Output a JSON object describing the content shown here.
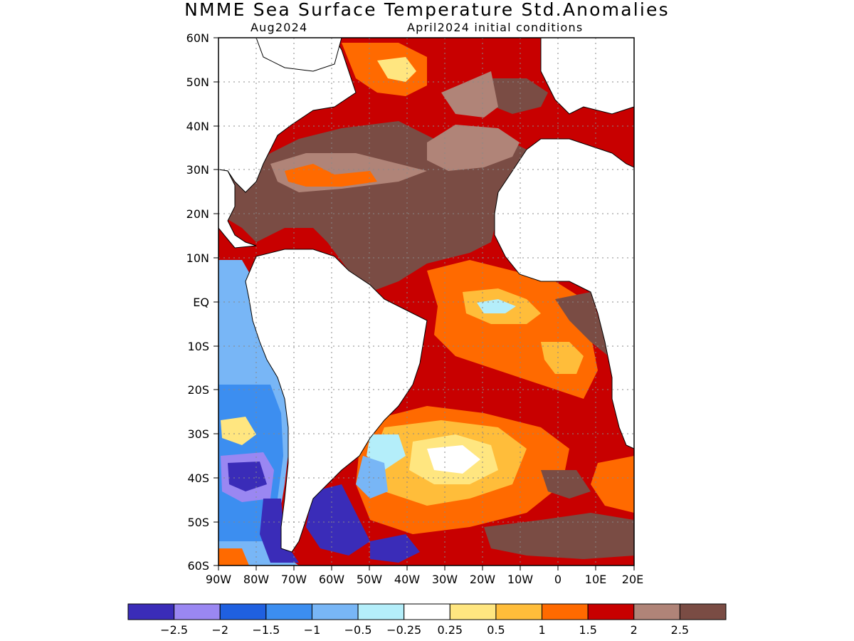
{
  "title": "NMME Sea Surface Temperature Std.Anomalies",
  "subtitle_left": "Aug2024",
  "subtitle_right": "April2024 initial conditions",
  "lat_labels": [
    "60N",
    "50N",
    "40N",
    "30N",
    "20N",
    "10N",
    "EQ",
    "10S",
    "20S",
    "30S",
    "40S",
    "50S",
    "60S"
  ],
  "lon_labels": [
    "90W",
    "80W",
    "70W",
    "60W",
    "50W",
    "40W",
    "30W",
    "20W",
    "10W",
    "0",
    "10E",
    "20E"
  ],
  "colorbar": {
    "colors": [
      "#3a2cb8",
      "#9a87f2",
      "#1f60e0",
      "#3c8ef0",
      "#78b6f6",
      "#b4eefa",
      "#ffffff",
      "#ffe680",
      "#ffbd3a",
      "#ff6a00",
      "#c80000",
      "#b08478",
      "#7a4c44"
    ],
    "labels": [
      "-2.5",
      "-2",
      "-1.5",
      "-1",
      "-0.5",
      "-0.25",
      "0.25",
      "0.5",
      "1",
      "1.5",
      "2",
      "2.5"
    ]
  },
  "map_colors": {
    "dark_brown": "#7a4c44",
    "light_brown": "#b08478",
    "dark_red": "#c80000",
    "orange": "#ff6a00",
    "light_orange": "#ffbd3a",
    "yellow": "#ffe680",
    "pale_cyan": "#b4eefa",
    "light_blue": "#78b6f6",
    "blue": "#3c8ef0",
    "deep_blue": "#1f60e0",
    "lavender": "#9a87f2",
    "indigo": "#3a2cb8"
  }
}
